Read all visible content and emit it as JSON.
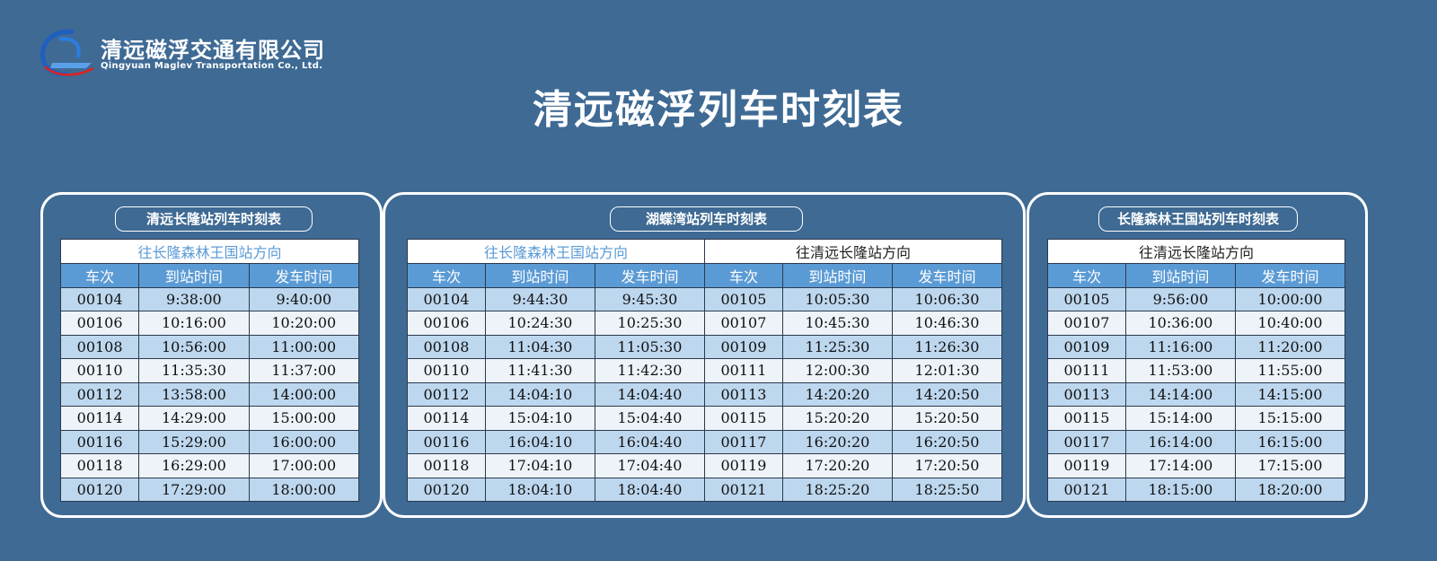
{
  "logo": {
    "name_cn": "清远磁浮交通有限公司",
    "name_en": "Qingyuan Maglev Transportation Co., Ltd."
  },
  "title": "清远磁浮列车时刻表",
  "colors": {
    "background": "#3e6a94",
    "header": "#5b9bd5",
    "row_odd": "#bdd7ee",
    "row_even": "#eef3fa"
  },
  "columns": [
    "车次",
    "到站时间",
    "发车时间"
  ],
  "panels": [
    {
      "title": "清远长隆站列车时刻表",
      "directions": [
        {
          "label": "往长隆森林王国站方向",
          "rows": [
            [
              "00104",
              "9:38:00",
              "9:40:00"
            ],
            [
              "00106",
              "10:16:00",
              "10:20:00"
            ],
            [
              "00108",
              "10:56:00",
              "11:00:00"
            ],
            [
              "00110",
              "11:35:30",
              "11:37:00"
            ],
            [
              "00112",
              "13:58:00",
              "14:00:00"
            ],
            [
              "00114",
              "14:29:00",
              "15:00:00"
            ],
            [
              "00116",
              "15:29:00",
              "16:00:00"
            ],
            [
              "00118",
              "16:29:00",
              "17:00:00"
            ],
            [
              "00120",
              "17:29:00",
              "18:00:00"
            ]
          ]
        }
      ]
    },
    {
      "title": "湖蝶湾站列车时刻表",
      "directions": [
        {
          "label": "往长隆森林王国站方向",
          "rows": [
            [
              "00104",
              "9:44:30",
              "9:45:30"
            ],
            [
              "00106",
              "10:24:30",
              "10:25:30"
            ],
            [
              "00108",
              "11:04:30",
              "11:05:30"
            ],
            [
              "00110",
              "11:41:30",
              "11:42:30"
            ],
            [
              "00112",
              "14:04:10",
              "14:04:40"
            ],
            [
              "00114",
              "15:04:10",
              "15:04:40"
            ],
            [
              "00116",
              "16:04:10",
              "16:04:40"
            ],
            [
              "00118",
              "17:04:10",
              "17:04:40"
            ],
            [
              "00120",
              "18:04:10",
              "18:04:40"
            ]
          ]
        },
        {
          "label": "往清远长隆站方向",
          "rows": [
            [
              "00105",
              "10:05:30",
              "10:06:30"
            ],
            [
              "00107",
              "10:45:30",
              "10:46:30"
            ],
            [
              "00109",
              "11:25:30",
              "11:26:30"
            ],
            [
              "00111",
              "12:00:30",
              "12:01:30"
            ],
            [
              "00113",
              "14:20:20",
              "14:20:50"
            ],
            [
              "00115",
              "15:20:20",
              "15:20:50"
            ],
            [
              "00117",
              "16:20:20",
              "16:20:50"
            ],
            [
              "00119",
              "17:20:20",
              "17:20:50"
            ],
            [
              "00121",
              "18:25:20",
              "18:25:50"
            ]
          ]
        }
      ]
    },
    {
      "title": "长隆森林王国站列车时刻表",
      "directions": [
        {
          "label": "往清远长隆站方向",
          "rows": [
            [
              "00105",
              "9:56:00",
              "10:00:00"
            ],
            [
              "00107",
              "10:36:00",
              "10:40:00"
            ],
            [
              "00109",
              "11:16:00",
              "11:20:00"
            ],
            [
              "00111",
              "11:53:00",
              "11:55:00"
            ],
            [
              "00113",
              "14:14:00",
              "14:15:00"
            ],
            [
              "00115",
              "15:14:00",
              "15:15:00"
            ],
            [
              "00117",
              "16:14:00",
              "16:15:00"
            ],
            [
              "00119",
              "17:14:00",
              "17:15:00"
            ],
            [
              "00121",
              "18:15:00",
              "18:20:00"
            ]
          ]
        }
      ]
    }
  ]
}
